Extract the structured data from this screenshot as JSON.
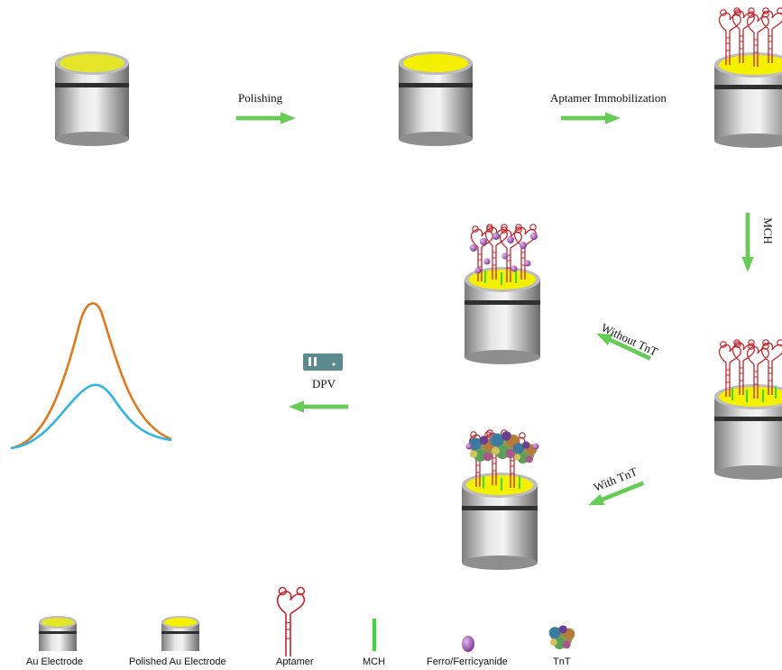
{
  "steps": {
    "polishing": "Polishing",
    "aptamer_immobilization": "Aptamer Immobilization",
    "mch": "MCH",
    "without_tnt": "Without TnT",
    "with_tnt": "With TnT",
    "dpv": "DPV"
  },
  "legend": {
    "au_electrode": "Au Electrode",
    "polished_au_electrode": "Polished Au Electrode",
    "aptamer": "Aptamer",
    "mch": "MCH",
    "ferro_ferricyanide": "Ferro/Ferricyanide",
    "tnt": "TnT"
  },
  "colors": {
    "gold_surface": "#e5e52a",
    "polished_surface": "#f5ef00",
    "arrow": "#66cc55",
    "aptamer": "#c0282f",
    "mch": "#33dd33",
    "ferro": "#9b4fa8",
    "curve_high": "#e07a1f",
    "curve_low": "#2fb6e3"
  }
}
